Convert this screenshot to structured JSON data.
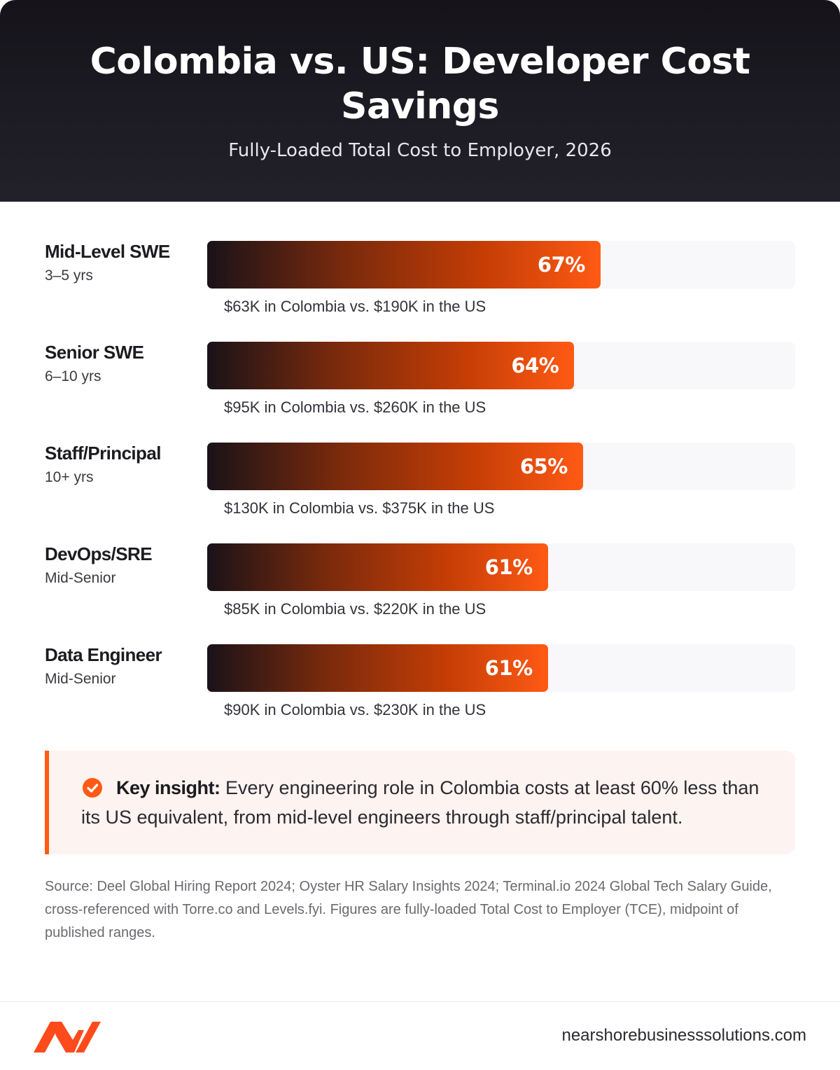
{
  "header": {
    "title": "Colombia vs. US: Developer Cost Savings",
    "subtitle": "Fully-Loaded Total Cost to Employer, 2026"
  },
  "chart_data": {
    "type": "bar",
    "orientation": "horizontal",
    "categories": [
      "Mid-Level SWE",
      "Senior SWE",
      "Staff/Principal",
      "DevOps/SRE",
      "Data Engineer"
    ],
    "experience": [
      "3–5 yrs",
      "6–10 yrs",
      "10+ yrs",
      "Mid-Senior",
      "Mid-Senior"
    ],
    "values": [
      67,
      64,
      65,
      61,
      61
    ],
    "value_labels": [
      "67%",
      "64%",
      "65%",
      "61%",
      "61%"
    ],
    "comparisons": [
      "$63K in Colombia vs. $190K in the US",
      "$95K in Colombia vs. $260K in the US",
      "$130K in Colombia vs. $375K in the US",
      "$85K in Colombia vs. $220K in the US",
      "$90K in Colombia vs. $230K in the US"
    ],
    "colombia_cost_k": [
      63,
      95,
      130,
      85,
      90
    ],
    "us_cost_k": [
      190,
      260,
      375,
      220,
      230
    ],
    "xlim": [
      0,
      100
    ],
    "bar_color_start": "#1a1218",
    "bar_color_end": "#ff5a14",
    "grid": false
  },
  "insight": {
    "lead": "Key insight:",
    "text": " Every engineering role in Colombia costs at least 60% less than its US equivalent, from mid-level engineers through staff/principal talent.",
    "icon": "check-circle-icon",
    "accent": "#ff5a14"
  },
  "source": "Source: Deel Global Hiring Report 2024; Oyster HR Salary Insights 2024; Terminal.io 2024 Global Tech Salary Guide, cross-referenced with Torre.co and Levels.fyi. Figures are fully-loaded Total Cost to Employer (TCE), midpoint of published ranges.",
  "footer": {
    "logo": "brand-logo-icon",
    "website": "nearshorebusinesssolutions.com"
  }
}
